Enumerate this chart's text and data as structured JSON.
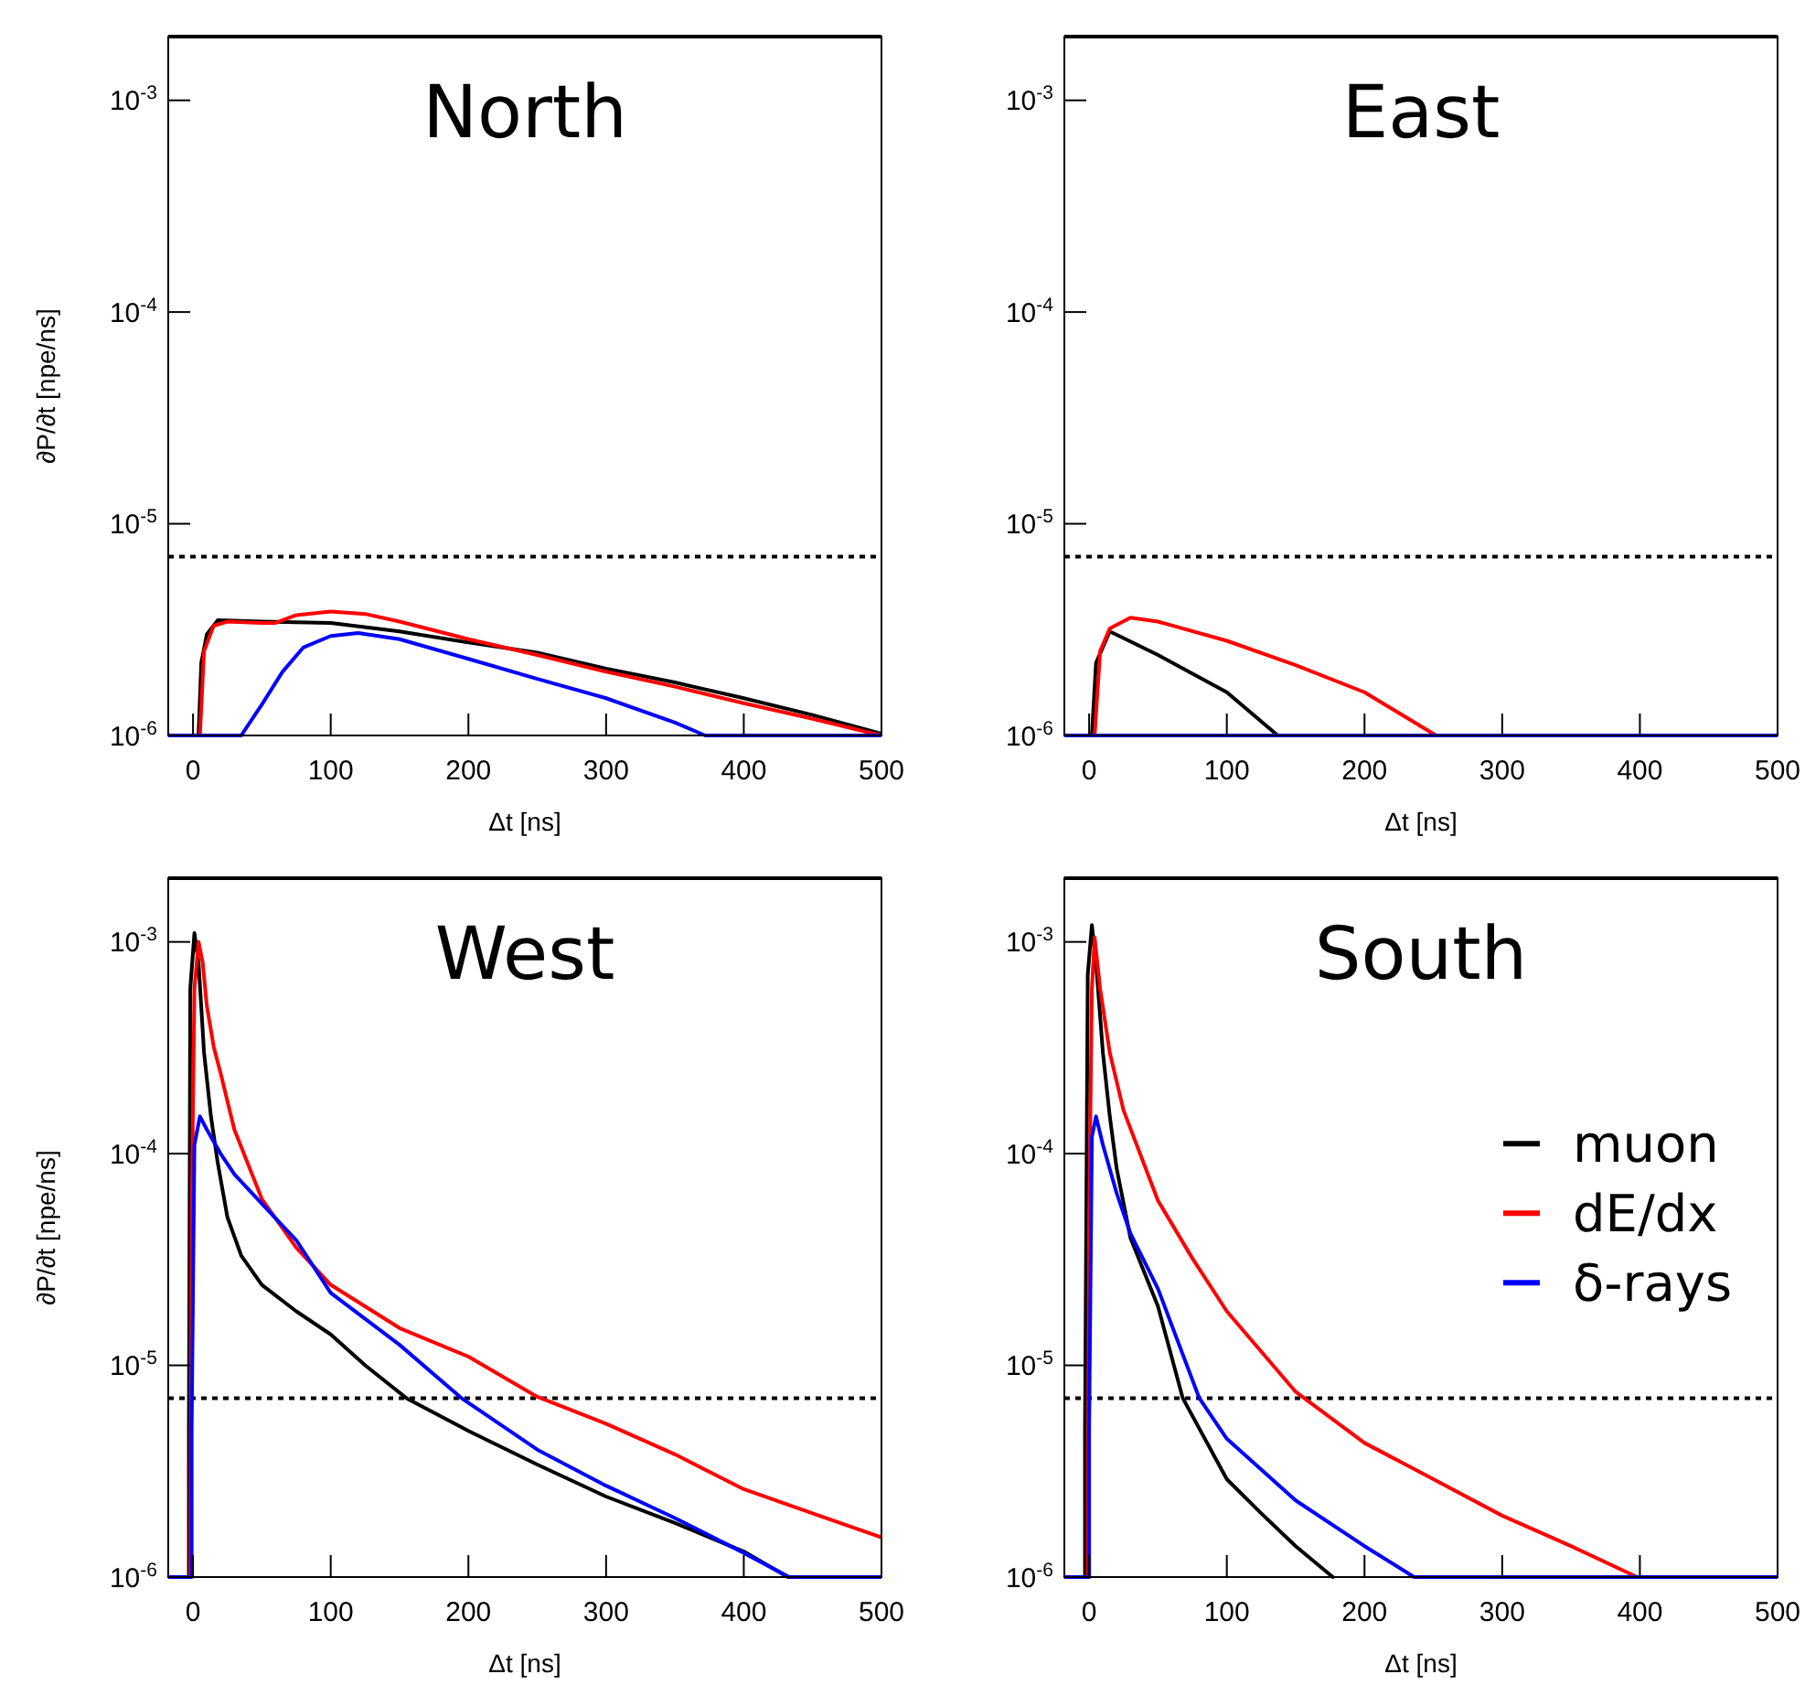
{
  "chart_data": [
    {
      "type": "line",
      "title": "North",
      "xlabel": "Δt [ns]",
      "ylabel": "∂P/∂t [npe/ns]",
      "log": "y",
      "xlim": [
        -18,
        500
      ],
      "ylim": [
        1e-06,
        0.002
      ],
      "xticks": [
        0,
        100,
        200,
        300,
        400,
        500
      ],
      "yticks": [
        {
          "value": 1e-06,
          "label": "10$^{-6}$"
        },
        {
          "value": 1e-05,
          "label": "10$^{-5}$"
        },
        {
          "value": 0.0001,
          "label": "10$^{-4}$"
        },
        {
          "value": 0.001,
          "label": "10$^{-3}$"
        }
      ],
      "grid": false,
      "legend": false,
      "ref_lines": [
        {
          "axis": "y",
          "value": 7e-06,
          "color": "#000000",
          "line_style": "dotted"
        }
      ],
      "series": [
        {
          "color": "#000000",
          "x": [
            4,
            6,
            10,
            18,
            50,
            100,
            150,
            200,
            250,
            300,
            350,
            400,
            450,
            500
          ],
          "values": [
            1e-06,
            2.2e-06,
            3e-06,
            3.5e-06,
            3.45e-06,
            3.4e-06,
            3.1e-06,
            2.75e-06,
            2.46e-06,
            2.07e-06,
            1.78e-06,
            1.5e-06,
            1.25e-06,
            1.02e-06
          ]
        },
        {
          "color": "#ff0000",
          "x": [
            5,
            8,
            15,
            25,
            50,
            60,
            75,
            100,
            125,
            150,
            200,
            250,
            300,
            350,
            400,
            450,
            500
          ],
          "values": [
            1e-06,
            2.5e-06,
            3.3e-06,
            3.45e-06,
            3.4e-06,
            3.4e-06,
            3.7e-06,
            3.85e-06,
            3.75e-06,
            3.45e-06,
            2.85e-06,
            2.4e-06,
            2e-06,
            1.7e-06,
            1.42e-06,
            1.2e-06,
            1e-06
          ]
        },
        {
          "color": "#0000ff",
          "x": [
            -18,
            35,
            50,
            65,
            80,
            100,
            120,
            150,
            200,
            250,
            300,
            350,
            372,
            500
          ],
          "values": [
            1e-06,
            1e-06,
            1.4e-06,
            2e-06,
            2.6e-06,
            2.95e-06,
            3.05e-06,
            2.85e-06,
            2.3e-06,
            1.85e-06,
            1.5e-06,
            1.15e-06,
            1e-06,
            1e-06
          ]
        }
      ]
    },
    {
      "type": "line",
      "title": "East",
      "xlabel": "Δt [ns]",
      "log": "y",
      "xlim": [
        -18,
        500
      ],
      "ylim": [
        1e-06,
        0.002
      ],
      "xticks": [
        0,
        100,
        200,
        300,
        400,
        500
      ],
      "yticks": [
        {
          "value": 1e-06,
          "label": "10$^{-6}$"
        },
        {
          "value": 1e-05,
          "label": "10$^{-5}$"
        },
        {
          "value": 0.0001,
          "label": "10$^{-4}$"
        },
        {
          "value": 0.001,
          "label": "10$^{-3}$"
        }
      ],
      "grid": false,
      "legend": false,
      "ref_lines": [
        {
          "axis": "y",
          "value": 7e-06,
          "color": "#000000",
          "line_style": "dotted"
        }
      ],
      "series": [
        {
          "color": "#000000",
          "x": [
            2,
            5,
            15,
            50,
            100,
            137
          ],
          "values": [
            1e-06,
            2.2e-06,
            3.1e-06,
            2.4e-06,
            1.6e-06,
            1e-06
          ]
        },
        {
          "color": "#ff0000",
          "x": [
            4,
            8,
            15,
            30,
            50,
            100,
            150,
            200,
            252
          ],
          "values": [
            1e-06,
            2.5e-06,
            3.2e-06,
            3.6e-06,
            3.45e-06,
            2.8e-06,
            2.15e-06,
            1.6e-06,
            1e-06
          ]
        },
        {
          "color": "#0000ff",
          "x": [
            -18,
            500
          ],
          "values": [
            1e-06,
            1e-06
          ]
        }
      ]
    },
    {
      "type": "line",
      "title": "West",
      "xlabel": "Δt [ns]",
      "ylabel": "∂P/∂t [npe/ns]",
      "log": "y",
      "xlim": [
        -18,
        500
      ],
      "ylim": [
        1e-06,
        0.002
      ],
      "xticks": [
        0,
        100,
        200,
        300,
        400,
        500
      ],
      "yticks": [
        {
          "value": 1e-06,
          "label": "10$^{-6}$"
        },
        {
          "value": 1e-05,
          "label": "10$^{-5}$"
        },
        {
          "value": 0.0001,
          "label": "10$^{-4}$"
        },
        {
          "value": 0.001,
          "label": "10$^{-3}$"
        }
      ],
      "grid": false,
      "legend": false,
      "ref_lines": [
        {
          "axis": "y",
          "value": 7e-06,
          "color": "#000000",
          "line_style": "dotted"
        }
      ],
      "series": [
        {
          "color": "#000000",
          "x": [
            -3,
            -3,
            -2,
            1,
            4,
            8,
            13,
            18,
            25,
            35,
            50,
            75,
            100,
            125,
            155,
            200,
            250,
            300,
            350,
            400,
            432
          ],
          "values": [
            1e-06,
            5e-06,
            0.0006,
            0.0011,
            0.0008,
            0.0003,
            0.00015,
            9e-05,
            5e-05,
            3.3e-05,
            2.4e-05,
            1.8e-05,
            1.4e-05,
            1e-05,
            7e-06,
            4.9e-06,
            3.4e-06,
            2.4e-06,
            1.8e-06,
            1.32e-06,
            1e-06
          ]
        },
        {
          "color": "#ff0000",
          "x": [
            -2,
            -1,
            1,
            4,
            7,
            10,
            15,
            20,
            30,
            50,
            75,
            100,
            150,
            200,
            250,
            300,
            350,
            400,
            450,
            500
          ],
          "values": [
            1e-06,
            5e-05,
            0.0006,
            0.001,
            0.0008,
            0.0005,
            0.00032,
            0.00024,
            0.00013,
            6.1e-05,
            3.6e-05,
            2.4e-05,
            1.5e-05,
            1.1e-05,
            7.1e-06,
            5.3e-06,
            3.8e-06,
            2.6e-06,
            2e-06,
            1.54e-06
          ]
        },
        {
          "color": "#0000ff",
          "x": [
            -18,
            -1,
            -1,
            1,
            5,
            10,
            20,
            30,
            50,
            75,
            100,
            150,
            195,
            250,
            300,
            350,
            400,
            433,
            500
          ],
          "values": [
            1e-06,
            1e-06,
            5e-06,
            0.00011,
            0.00015,
            0.00013,
            0.0001,
            8e-05,
            5.8e-05,
            3.9e-05,
            2.2e-05,
            1.25e-05,
            7e-06,
            4e-06,
            2.7e-06,
            1.9e-06,
            1.3e-06,
            1e-06,
            1e-06
          ]
        }
      ]
    },
    {
      "type": "line",
      "title": "South",
      "xlabel": "Δt [ns]",
      "log": "y",
      "xlim": [
        -18,
        500
      ],
      "ylim": [
        1e-06,
        0.002
      ],
      "xticks": [
        0,
        100,
        200,
        300,
        400,
        500
      ],
      "yticks": [
        {
          "value": 1e-06,
          "label": "10$^{-6}$"
        },
        {
          "value": 1e-05,
          "label": "10$^{-5}$"
        },
        {
          "value": 0.0001,
          "label": "10$^{-4}$"
        },
        {
          "value": 0.001,
          "label": "10$^{-3}$"
        }
      ],
      "grid": false,
      "legend": "right",
      "ref_lines": [
        {
          "axis": "y",
          "value": 7e-06,
          "color": "#000000",
          "line_style": "dotted"
        }
      ],
      "series": [
        {
          "name": "muon",
          "color": "#000000",
          "x": [
            -3,
            -3,
            -1,
            2,
            5,
            10,
            15,
            20,
            30,
            50,
            68,
            100,
            125,
            150,
            177
          ],
          "values": [
            1e-06,
            5e-06,
            0.0007,
            0.0012,
            0.0008,
            0.0003,
            0.00015,
            8.5e-05,
            4e-05,
            1.9e-05,
            7e-06,
            2.9e-06,
            2e-06,
            1.4e-06,
            1e-06
          ]
        },
        {
          "name": "dE/dx",
          "color": "#ff0000",
          "x": [
            -1,
            0,
            2,
            4,
            8,
            15,
            25,
            50,
            75,
            100,
            150,
            200,
            250,
            300,
            350,
            398
          ],
          "values": [
            1e-06,
            5e-05,
            0.0006,
            0.00105,
            0.0006,
            0.0003,
            0.00016,
            6e-05,
            3.2e-05,
            1.8e-05,
            7.5e-06,
            4.3e-06,
            2.9e-06,
            1.95e-06,
            1.4e-06,
            1e-06
          ]
        },
        {
          "name": "δ-rays",
          "color": "#0000ff",
          "x": [
            -18,
            0,
            0,
            2,
            5,
            10,
            20,
            30,
            50,
            80,
            100,
            150,
            200,
            236,
            500
          ],
          "values": [
            1e-06,
            1e-06,
            5e-06,
            0.00012,
            0.00015,
            0.00011,
            6.5e-05,
            4.2e-05,
            2.3e-05,
            7e-06,
            4.5e-06,
            2.3e-06,
            1.4e-06,
            1e-06,
            1e-06
          ]
        }
      ]
    }
  ]
}
